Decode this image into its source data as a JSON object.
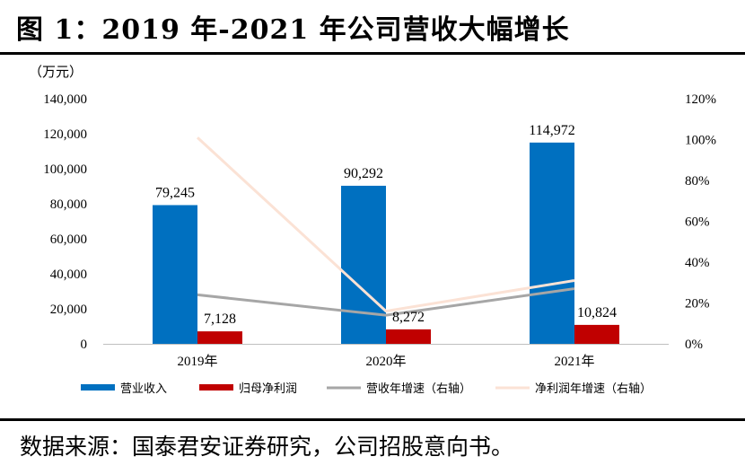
{
  "title": "图 1：2019 年-2021 年公司营收大幅增长",
  "source": "数据来源：国泰君安证券研究，公司招股意向书。",
  "chart_data": {
    "type": "bar",
    "categories": [
      "2019年",
      "2020年",
      "2021年"
    ],
    "y_unit_label": "（万元）",
    "ylim": [
      0,
      140000
    ],
    "y_ticks": [
      "0",
      "20,000",
      "40,000",
      "60,000",
      "80,000",
      "100,000",
      "120,000",
      "140,000"
    ],
    "y2lim": [
      0,
      120
    ],
    "y2_ticks": [
      "0%",
      "20%",
      "40%",
      "60%",
      "80%",
      "100%",
      "120%"
    ],
    "series": [
      {
        "name": "营业收入",
        "kind": "bar",
        "axis": "left",
        "color": "#0070C0",
        "values": [
          79245,
          90292,
          114972
        ],
        "labels": [
          "79,245",
          "90,292",
          "114,972"
        ]
      },
      {
        "name": "归母净利润",
        "kind": "bar",
        "axis": "left",
        "color": "#C00000",
        "values": [
          7128,
          8272,
          10824
        ],
        "labels": [
          "7,128",
          "8,272",
          "10,824"
        ]
      },
      {
        "name": "营收年增速（右轴）",
        "kind": "line",
        "axis": "right",
        "color": "#A6A6A6",
        "values": [
          24,
          14,
          27
        ]
      },
      {
        "name": "净利润年增速（右轴）",
        "kind": "line",
        "axis": "right",
        "color": "#FBE2D5",
        "values": [
          101,
          16,
          31
        ]
      }
    ],
    "legend_position": "bottom"
  }
}
